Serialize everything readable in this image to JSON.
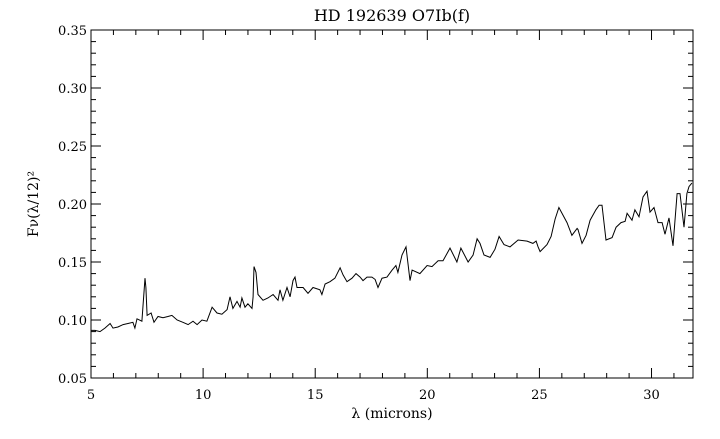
{
  "chart_data": {
    "type": "line",
    "title": "HD 192639 O7Ib(f)",
    "xlabel": "λ (microns)",
    "ylabel": "Fν(λ/12)²",
    "xlim": [
      5,
      31.85
    ],
    "ylim": [
      0.05,
      0.35
    ],
    "x_ticks": [
      "5",
      "10",
      "15",
      "20",
      "25",
      "30"
    ],
    "y_ticks": [
      "0.05",
      "0.10",
      "0.15",
      "0.20",
      "0.25",
      "0.30",
      "0.35"
    ],
    "grid": false,
    "line_color": "#000000",
    "series": [
      {
        "x": [
          5.0,
          5.18,
          5.4,
          5.62,
          5.85,
          5.98,
          6.2,
          6.43,
          6.65,
          6.87,
          6.96,
          7.05,
          7.27,
          7.41,
          7.45,
          7.5,
          7.68,
          7.81,
          7.99,
          8.21,
          8.43,
          8.61,
          8.84,
          9.1,
          9.33,
          9.55,
          9.73,
          9.95,
          10.17,
          10.4,
          10.62,
          10.84,
          11.07,
          11.2,
          11.33,
          11.51,
          11.65,
          11.73,
          11.87,
          12.0,
          12.18,
          12.23,
          12.27,
          12.36,
          12.45,
          12.67,
          12.89,
          13.12,
          13.34,
          13.43,
          13.56,
          13.74,
          13.88,
          14.01,
          14.1,
          14.19,
          14.46,
          14.68,
          14.9,
          15.21,
          15.3,
          15.44,
          15.66,
          15.88,
          16.11,
          16.24,
          16.42,
          16.64,
          16.82,
          17.0,
          17.13,
          17.31,
          17.53,
          17.67,
          17.8,
          17.98,
          18.2,
          18.43,
          18.6,
          18.69,
          18.87,
          19.05,
          19.23,
          19.32,
          19.67,
          19.99,
          20.21,
          20.48,
          20.7,
          21.01,
          21.32,
          21.5,
          21.82,
          22.04,
          22.22,
          22.35,
          22.53,
          22.8,
          23.02,
          23.2,
          23.42,
          23.69,
          24.05,
          24.45,
          24.71,
          24.85,
          24.94,
          25.03,
          25.34,
          25.52,
          25.7,
          25.87,
          26.23,
          26.45,
          26.68,
          26.72,
          26.9,
          27.08,
          27.26,
          27.52,
          27.66,
          27.79,
          27.97,
          28.24,
          28.42,
          28.64,
          28.82,
          28.91,
          29.13,
          29.26,
          29.44,
          29.62,
          29.8,
          29.93,
          30.11,
          30.29,
          30.47,
          30.6,
          30.78,
          30.96,
          31.14,
          31.27,
          31.45,
          31.58,
          31.67,
          31.8
        ],
        "y": [
          0.091,
          0.091,
          0.09,
          0.093,
          0.097,
          0.093,
          0.094,
          0.096,
          0.097,
          0.098,
          0.093,
          0.101,
          0.099,
          0.136,
          0.128,
          0.104,
          0.106,
          0.098,
          0.103,
          0.102,
          0.103,
          0.104,
          0.1,
          0.098,
          0.096,
          0.099,
          0.096,
          0.1,
          0.099,
          0.111,
          0.106,
          0.105,
          0.109,
          0.12,
          0.11,
          0.116,
          0.111,
          0.119,
          0.111,
          0.114,
          0.11,
          0.12,
          0.146,
          0.141,
          0.122,
          0.117,
          0.119,
          0.122,
          0.117,
          0.126,
          0.117,
          0.128,
          0.12,
          0.134,
          0.137,
          0.128,
          0.128,
          0.123,
          0.128,
          0.126,
          0.122,
          0.131,
          0.133,
          0.136,
          0.145,
          0.139,
          0.133,
          0.136,
          0.14,
          0.137,
          0.134,
          0.137,
          0.137,
          0.135,
          0.128,
          0.136,
          0.137,
          0.143,
          0.147,
          0.141,
          0.156,
          0.163,
          0.134,
          0.143,
          0.14,
          0.147,
          0.146,
          0.151,
          0.151,
          0.162,
          0.15,
          0.162,
          0.15,
          0.156,
          0.17,
          0.166,
          0.156,
          0.154,
          0.161,
          0.172,
          0.165,
          0.163,
          0.169,
          0.168,
          0.166,
          0.168,
          0.163,
          0.159,
          0.165,
          0.172,
          0.187,
          0.197,
          0.184,
          0.173,
          0.179,
          0.178,
          0.166,
          0.173,
          0.186,
          0.195,
          0.199,
          0.199,
          0.169,
          0.171,
          0.18,
          0.184,
          0.185,
          0.192,
          0.186,
          0.195,
          0.189,
          0.206,
          0.211,
          0.193,
          0.197,
          0.184,
          0.184,
          0.174,
          0.188,
          0.164,
          0.209,
          0.209,
          0.18,
          0.209,
          0.215,
          0.218
        ]
      }
    ]
  }
}
